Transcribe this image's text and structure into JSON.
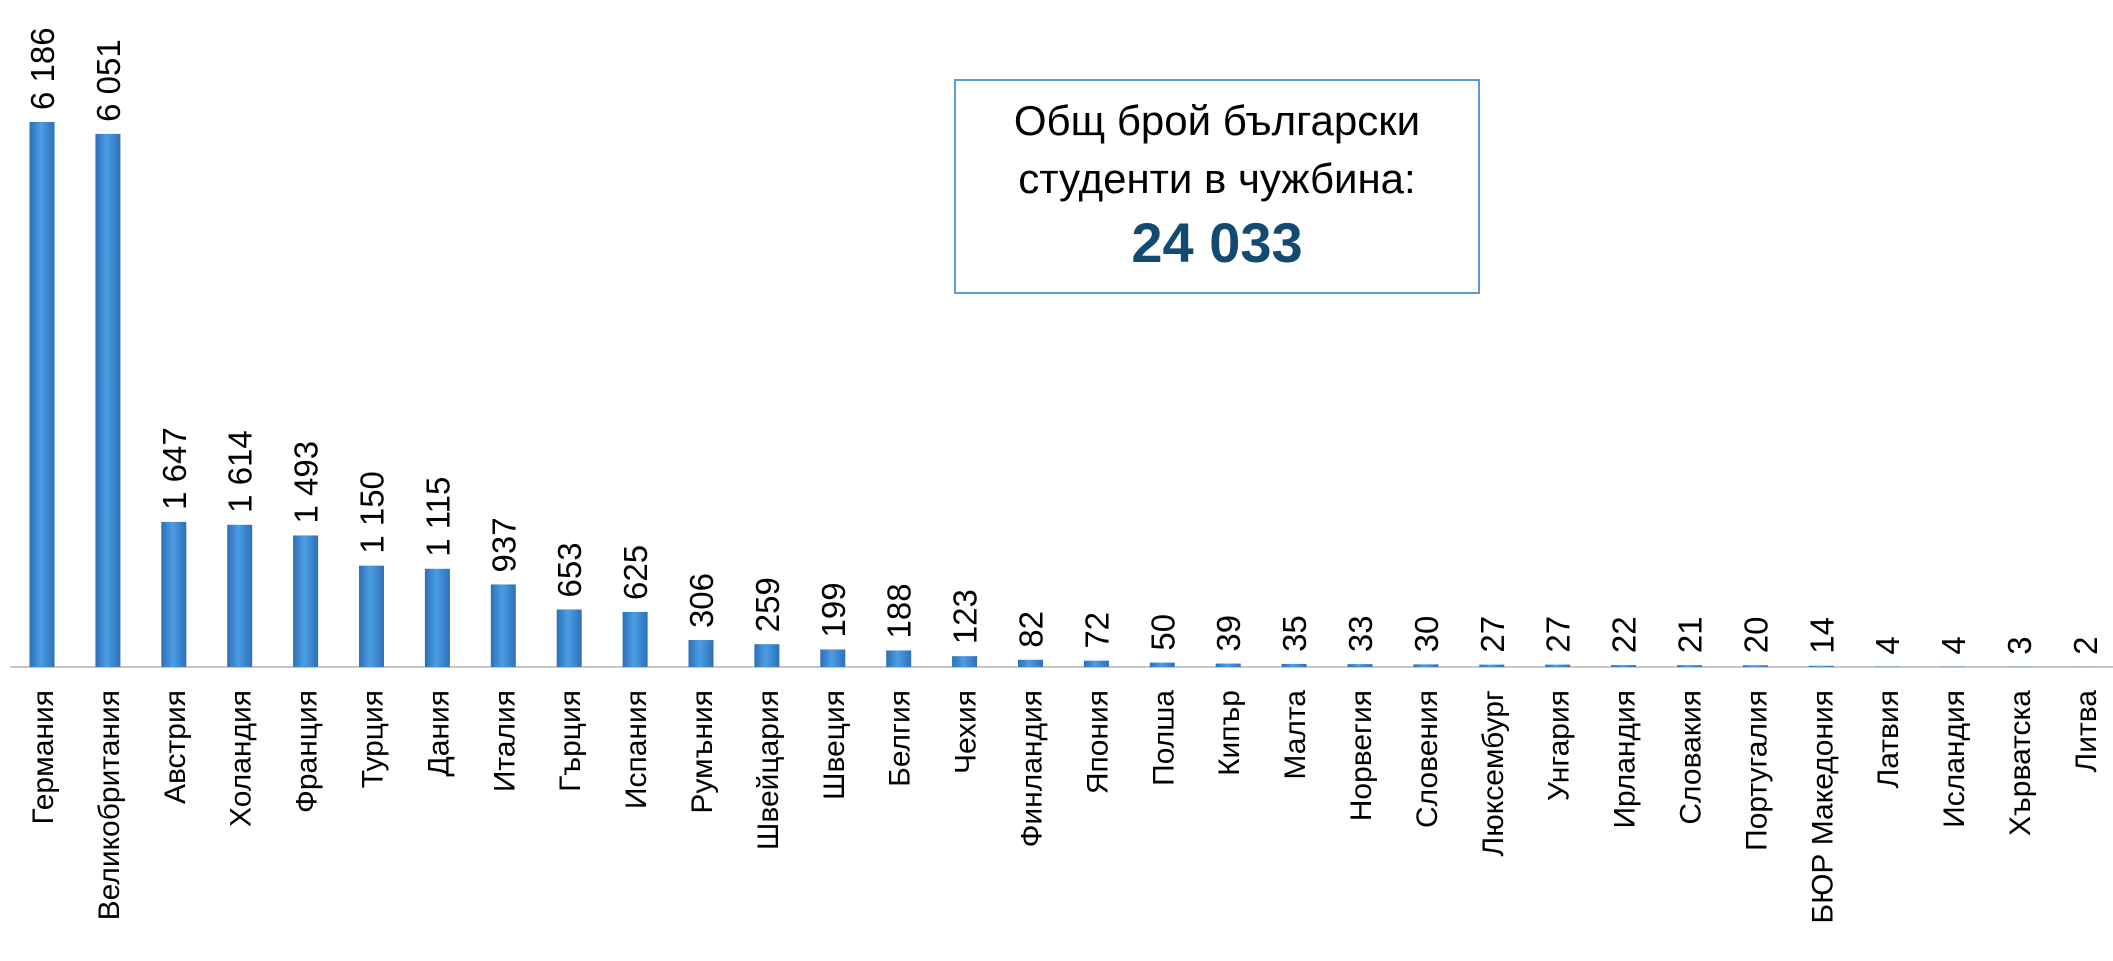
{
  "chart_data": {
    "type": "bar",
    "categories": [
      "Германия",
      "Великобритания",
      "Австрия",
      "Холандия",
      "Франция",
      "Турция",
      "Дания",
      "Италия",
      "Гърция",
      "Испания",
      "Румъния",
      "Швейцария",
      "Швеция",
      "Белгия",
      "Чехия",
      "Финландия",
      "Япония",
      "Полша",
      "Кипър",
      "Малта",
      "Норвегия",
      "Словения",
      "Люксембург",
      "Унгария",
      "Ирландия",
      "Словакия",
      "Португалия",
      "БЮР Македония",
      "Латвия",
      "Исландия",
      "Хърватска",
      "Литва"
    ],
    "values": [
      6186,
      6051,
      1647,
      1614,
      1493,
      1150,
      1115,
      937,
      653,
      625,
      306,
      259,
      199,
      188,
      123,
      82,
      72,
      50,
      39,
      35,
      33,
      30,
      27,
      27,
      22,
      21,
      20,
      14,
      4,
      4,
      3,
      2
    ],
    "value_labels": [
      "6 186",
      "6 051",
      "1 647",
      "1 614",
      "1 493",
      "1 150",
      "1 115",
      "937",
      "653",
      "625",
      "306",
      "259",
      "199",
      "188",
      "123",
      "82",
      "72",
      "50",
      "39",
      "35",
      "33",
      "30",
      "27",
      "27",
      "22",
      "21",
      "20",
      "14",
      "4",
      "4",
      "3",
      "2"
    ],
    "color": "#3f8fdc",
    "annotation": {
      "lines": [
        "Общ брой български",
        "студенти в чужбина:"
      ],
      "total": "24 033"
    }
  }
}
